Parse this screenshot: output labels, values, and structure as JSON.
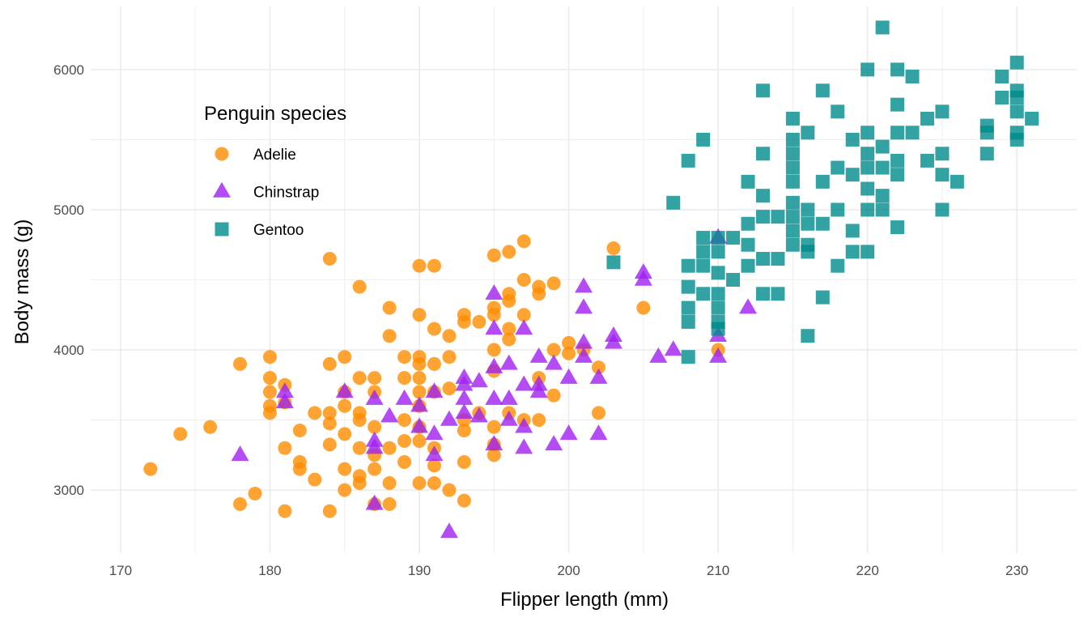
{
  "chart_data": {
    "type": "scatter",
    "xlabel": "Flipper length (mm)",
    "ylabel": "Body mass (g)",
    "xlim": [
      168,
      234
    ],
    "ylim": [
      2550,
      6450
    ],
    "x_ticks": [
      170,
      180,
      190,
      200,
      210,
      220,
      230
    ],
    "y_ticks": [
      3000,
      4000,
      5000,
      6000
    ],
    "grid": true,
    "legend": {
      "title": "Penguin species",
      "placement": "top-left"
    },
    "series": [
      {
        "name": "Adelie",
        "color": "#ff8c00",
        "marker": "circle",
        "points": [
          [
            172,
            3150
          ],
          [
            174,
            3400
          ],
          [
            176,
            3450
          ],
          [
            178,
            3900
          ],
          [
            178,
            2900
          ],
          [
            179,
            2975
          ],
          [
            180,
            3950
          ],
          [
            180,
            3800
          ],
          [
            180,
            3700
          ],
          [
            180,
            3600
          ],
          [
            180,
            3550
          ],
          [
            181,
            3750
          ],
          [
            181,
            3300
          ],
          [
            181,
            2850
          ],
          [
            181,
            3625
          ],
          [
            182,
            3200
          ],
          [
            182,
            3150
          ],
          [
            182,
            3425
          ],
          [
            183,
            3550
          ],
          [
            183,
            3075
          ],
          [
            184,
            4650
          ],
          [
            184,
            3900
          ],
          [
            184,
            3550
          ],
          [
            184,
            3475
          ],
          [
            184,
            3325
          ],
          [
            184,
            2850
          ],
          [
            185,
            3950
          ],
          [
            185,
            3700
          ],
          [
            185,
            3600
          ],
          [
            185,
            3400
          ],
          [
            185,
            3150
          ],
          [
            185,
            3000
          ],
          [
            186,
            4450
          ],
          [
            186,
            3800
          ],
          [
            186,
            3550
          ],
          [
            186,
            3500
          ],
          [
            186,
            3300
          ],
          [
            186,
            3100
          ],
          [
            186,
            3050
          ],
          [
            187,
            3800
          ],
          [
            187,
            3700
          ],
          [
            187,
            3450
          ],
          [
            187,
            3250
          ],
          [
            187,
            3150
          ],
          [
            187,
            2900
          ],
          [
            188,
            4300
          ],
          [
            188,
            4100
          ],
          [
            188,
            3300
          ],
          [
            188,
            3050
          ],
          [
            188,
            2900
          ],
          [
            189,
            3950
          ],
          [
            189,
            3800
          ],
          [
            189,
            3500
          ],
          [
            189,
            3350
          ],
          [
            189,
            3200
          ],
          [
            190,
            4600
          ],
          [
            190,
            4250
          ],
          [
            190,
            3950
          ],
          [
            190,
            3900
          ],
          [
            190,
            3800
          ],
          [
            190,
            3700
          ],
          [
            190,
            3600
          ],
          [
            190,
            3450
          ],
          [
            190,
            3350
          ],
          [
            190,
            3050
          ],
          [
            191,
            4600
          ],
          [
            191,
            4150
          ],
          [
            191,
            3900
          ],
          [
            191,
            3700
          ],
          [
            191,
            3300
          ],
          [
            191,
            3175
          ],
          [
            191,
            3050
          ],
          [
            192,
            4100
          ],
          [
            192,
            3950
          ],
          [
            192,
            3725
          ],
          [
            192,
            3000
          ],
          [
            193,
            4250
          ],
          [
            193,
            4200
          ],
          [
            193,
            3500
          ],
          [
            193,
            3425
          ],
          [
            193,
            3200
          ],
          [
            193,
            2925
          ],
          [
            194,
            4200
          ],
          [
            194,
            3550
          ],
          [
            195,
            4675
          ],
          [
            195,
            4300
          ],
          [
            195,
            4250
          ],
          [
            195,
            4000
          ],
          [
            195,
            3850
          ],
          [
            195,
            3450
          ],
          [
            195,
            3325
          ],
          [
            195,
            3250
          ],
          [
            196,
            4700
          ],
          [
            196,
            4400
          ],
          [
            196,
            4350
          ],
          [
            196,
            4150
          ],
          [
            196,
            4075
          ],
          [
            196,
            3550
          ],
          [
            197,
            4775
          ],
          [
            197,
            4500
          ],
          [
            197,
            4250
          ],
          [
            197,
            3500
          ],
          [
            198,
            4450
          ],
          [
            198,
            4400
          ],
          [
            198,
            3800
          ],
          [
            198,
            3500
          ],
          [
            199,
            4475
          ],
          [
            199,
            4000
          ],
          [
            199,
            3675
          ],
          [
            200,
            4050
          ],
          [
            200,
            3975
          ],
          [
            201,
            4000
          ],
          [
            202,
            3875
          ],
          [
            202,
            3550
          ],
          [
            203,
            4725
          ],
          [
            205,
            4300
          ],
          [
            210,
            4000
          ]
        ]
      },
      {
        "name": "Chinstrap",
        "color": "#a020f0",
        "marker": "triangle",
        "points": [
          [
            178,
            3250
          ],
          [
            181,
            3700
          ],
          [
            181,
            3625
          ],
          [
            185,
            3700
          ],
          [
            187,
            3650
          ],
          [
            187,
            3350
          ],
          [
            187,
            3300
          ],
          [
            187,
            2900
          ],
          [
            188,
            3525
          ],
          [
            189,
            3650
          ],
          [
            190,
            3600
          ],
          [
            190,
            3450
          ],
          [
            191,
            3700
          ],
          [
            191,
            3400
          ],
          [
            191,
            3250
          ],
          [
            192,
            3500
          ],
          [
            192,
            2700
          ],
          [
            193,
            3800
          ],
          [
            193,
            3750
          ],
          [
            193,
            3650
          ],
          [
            193,
            3550
          ],
          [
            194,
            3775
          ],
          [
            194,
            3525
          ],
          [
            195,
            4400
          ],
          [
            195,
            4150
          ],
          [
            195,
            3875
          ],
          [
            195,
            3650
          ],
          [
            195,
            3325
          ],
          [
            196,
            3900
          ],
          [
            196,
            3650
          ],
          [
            196,
            3500
          ],
          [
            197,
            4150
          ],
          [
            197,
            3750
          ],
          [
            197,
            3450
          ],
          [
            197,
            3300
          ],
          [
            198,
            3950
          ],
          [
            198,
            3750
          ],
          [
            198,
            3700
          ],
          [
            199,
            3900
          ],
          [
            199,
            3325
          ],
          [
            200,
            3800
          ],
          [
            200,
            3400
          ],
          [
            201,
            4450
          ],
          [
            201,
            4300
          ],
          [
            201,
            4050
          ],
          [
            201,
            3950
          ],
          [
            202,
            3800
          ],
          [
            202,
            3400
          ],
          [
            203,
            4100
          ],
          [
            203,
            4050
          ],
          [
            205,
            4550
          ],
          [
            205,
            4500
          ],
          [
            206,
            3950
          ],
          [
            207,
            4000
          ],
          [
            210,
            4800
          ],
          [
            210,
            4100
          ],
          [
            210,
            3950
          ],
          [
            212,
            4300
          ]
        ]
      },
      {
        "name": "Gentoo",
        "color": "#008b8b",
        "marker": "square",
        "points": [
          [
            203,
            4625
          ],
          [
            207,
            5050
          ],
          [
            208,
            5350
          ],
          [
            208,
            4600
          ],
          [
            208,
            4450
          ],
          [
            208,
            4300
          ],
          [
            208,
            4200
          ],
          [
            208,
            3950
          ],
          [
            209,
            5500
          ],
          [
            209,
            4800
          ],
          [
            209,
            4700
          ],
          [
            209,
            4600
          ],
          [
            209,
            4400
          ],
          [
            210,
            4800
          ],
          [
            210,
            4700
          ],
          [
            210,
            4550
          ],
          [
            210,
            4400
          ],
          [
            210,
            4300
          ],
          [
            210,
            4200
          ],
          [
            210,
            4150
          ],
          [
            211,
            4800
          ],
          [
            211,
            4500
          ],
          [
            212,
            5200
          ],
          [
            212,
            4900
          ],
          [
            212,
            4750
          ],
          [
            212,
            4600
          ],
          [
            213,
            5850
          ],
          [
            213,
            5400
          ],
          [
            213,
            5100
          ],
          [
            213,
            4950
          ],
          [
            213,
            4650
          ],
          [
            213,
            4400
          ],
          [
            214,
            4950
          ],
          [
            214,
            4650
          ],
          [
            214,
            4400
          ],
          [
            215,
            5650
          ],
          [
            215,
            5500
          ],
          [
            215,
            5400
          ],
          [
            215,
            5300
          ],
          [
            215,
            5200
          ],
          [
            215,
            5050
          ],
          [
            215,
            4950
          ],
          [
            215,
            4850
          ],
          [
            215,
            4750
          ],
          [
            216,
            5550
          ],
          [
            216,
            5000
          ],
          [
            216,
            4900
          ],
          [
            216,
            4750
          ],
          [
            216,
            4700
          ],
          [
            216,
            4100
          ],
          [
            217,
            5850
          ],
          [
            217,
            5200
          ],
          [
            217,
            4900
          ],
          [
            217,
            4375
          ],
          [
            218,
            5700
          ],
          [
            218,
            5300
          ],
          [
            218,
            5000
          ],
          [
            218,
            4600
          ],
          [
            219,
            5500
          ],
          [
            219,
            5250
          ],
          [
            219,
            4850
          ],
          [
            219,
            4700
          ],
          [
            220,
            6000
          ],
          [
            220,
            5550
          ],
          [
            220,
            5400
          ],
          [
            220,
            5300
          ],
          [
            220,
            5150
          ],
          [
            220,
            5000
          ],
          [
            220,
            4700
          ],
          [
            221,
            6300
          ],
          [
            221,
            5450
          ],
          [
            221,
            5300
          ],
          [
            221,
            5100
          ],
          [
            221,
            5000
          ],
          [
            222,
            6000
          ],
          [
            222,
            5750
          ],
          [
            222,
            5550
          ],
          [
            222,
            5350
          ],
          [
            222,
            5250
          ],
          [
            222,
            4875
          ],
          [
            223,
            5950
          ],
          [
            223,
            5550
          ],
          [
            224,
            5650
          ],
          [
            224,
            5350
          ],
          [
            225,
            5700
          ],
          [
            225,
            5400
          ],
          [
            225,
            5250
          ],
          [
            225,
            5000
          ],
          [
            226,
            5200
          ],
          [
            228,
            5600
          ],
          [
            228,
            5550
          ],
          [
            228,
            5400
          ],
          [
            229,
            5950
          ],
          [
            229,
            5800
          ],
          [
            230,
            6050
          ],
          [
            230,
            5850
          ],
          [
            230,
            5800
          ],
          [
            230,
            5700
          ],
          [
            230,
            5550
          ],
          [
            230,
            5500
          ],
          [
            231,
            5650
          ]
        ]
      }
    ]
  }
}
